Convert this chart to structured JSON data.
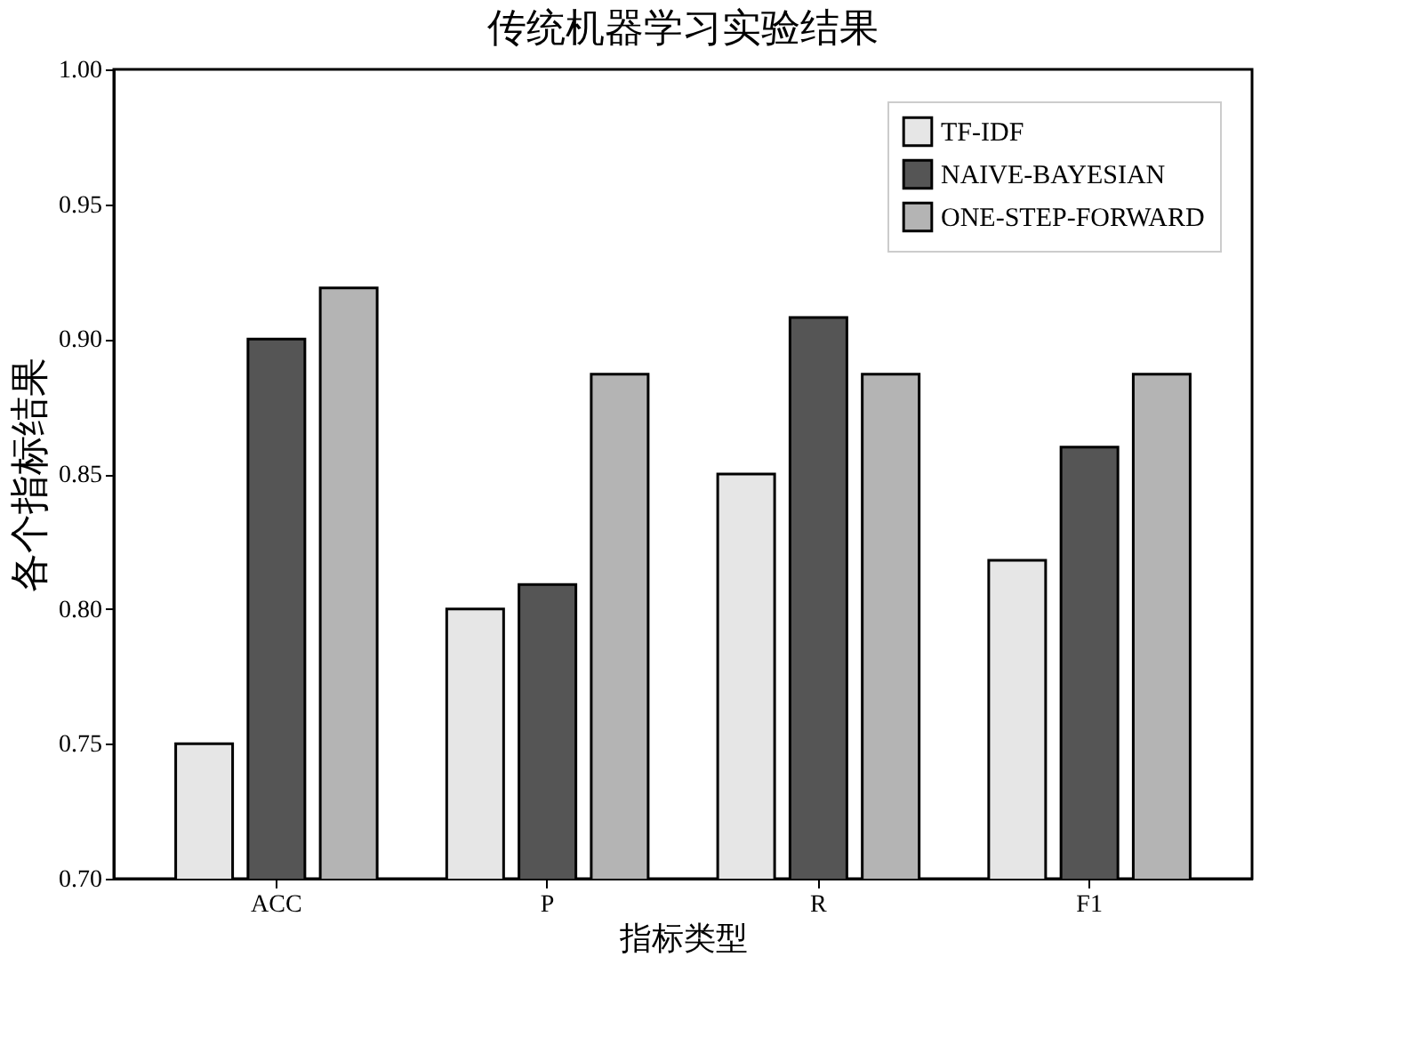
{
  "chart_data": {
    "type": "bar",
    "title": "传统机器学习实验结果",
    "xlabel": "指标类型",
    "ylabel": "各个指标结果",
    "categories": [
      "ACC",
      "P",
      "R",
      "F1"
    ],
    "series": [
      {
        "name": "TF-IDF",
        "color": "#e6e6e6",
        "values": [
          0.75,
          0.8,
          0.85,
          0.818
        ]
      },
      {
        "name": "NAIVE-BAYESIAN",
        "color": "#555555",
        "values": [
          0.9,
          0.809,
          0.908,
          0.86
        ]
      },
      {
        "name": "ONE-STEP-FORWARD",
        "color": "#b4b4b4",
        "values": [
          0.919,
          0.887,
          0.887,
          0.887
        ]
      }
    ],
    "ylim": [
      0.7,
      1.0
    ],
    "yticks": [
      {
        "value": 0.7,
        "label": "0.70"
      },
      {
        "value": 0.75,
        "label": "0.75"
      },
      {
        "value": 0.8,
        "label": "0.80"
      },
      {
        "value": 0.85,
        "label": "0.85"
      },
      {
        "value": 0.9,
        "label": "0.90"
      },
      {
        "value": 0.95,
        "label": "0.95"
      },
      {
        "value": 1.0,
        "label": "1.00"
      }
    ],
    "grid": false,
    "legend": "top right"
  }
}
